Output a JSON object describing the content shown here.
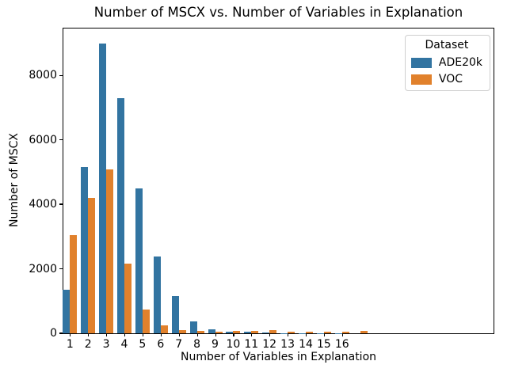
{
  "chart_data": {
    "type": "bar",
    "title": "Number of MSCX vs. Number of Variables in Explanation",
    "xlabel": "Number of Variables in Explanation",
    "ylabel": "Number of MSCX",
    "categories": [
      "1",
      "2",
      "3",
      "4",
      "5",
      "6",
      "7",
      "8",
      "9",
      "10",
      "11",
      "12",
      "13",
      "14",
      "15",
      "16",
      ""
    ],
    "series": [
      {
        "name": "ADE20k",
        "color": "#3274a1",
        "values": [
          1340,
          5150,
          8980,
          7280,
          4490,
          2370,
          1160,
          370,
          115,
          57,
          40,
          15,
          6,
          5,
          4,
          3,
          0
        ]
      },
      {
        "name": "VOC",
        "color": "#e1812c",
        "values": [
          3050,
          4210,
          5080,
          2170,
          730,
          235,
          95,
          75,
          57,
          75,
          80,
          90,
          62,
          62,
          60,
          55,
          65
        ]
      }
    ],
    "ylim": [
      0,
      9450
    ],
    "yticks": [
      0,
      2000,
      4000,
      6000,
      8000
    ],
    "grid": false,
    "legend": {
      "title": "Dataset",
      "position": "upper right"
    }
  }
}
